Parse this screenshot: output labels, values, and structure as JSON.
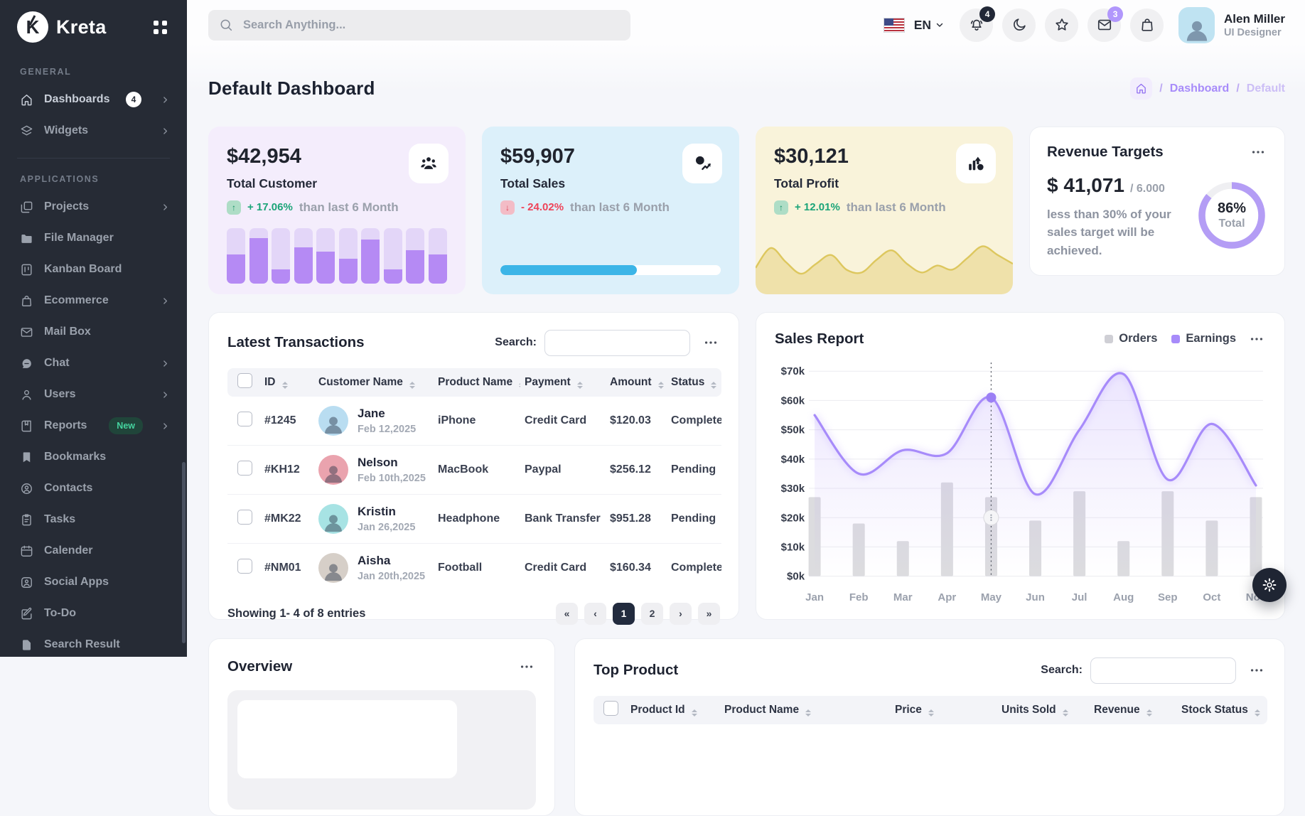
{
  "brand": {
    "name": "Kreta",
    "logo_letter": "K",
    "menu_icon": "grid-apps-icon"
  },
  "topbar": {
    "search": {
      "placeholder": "Search Anything...",
      "icon": "search-icon"
    },
    "language": {
      "label": "EN",
      "flag": "us-flag-icon",
      "caret": "chevron-down-icon"
    },
    "actions": [
      {
        "name": "notifications",
        "icon": "bell-icon",
        "badge": "4",
        "badge_color": "#222837"
      },
      {
        "name": "dark-mode",
        "icon": "moon-icon"
      },
      {
        "name": "favorites",
        "icon": "star-icon"
      },
      {
        "name": "messages",
        "icon": "mail-icon",
        "badge": "3",
        "badge_color": "#b197fc"
      },
      {
        "name": "cart",
        "icon": "shopping-bag-icon"
      }
    ],
    "user": {
      "name": "Alen Miller",
      "role": "UI Designer"
    }
  },
  "sidebar": {
    "sections": [
      {
        "title": "GENERAL",
        "items": [
          {
            "label": "Dashboards",
            "icon": "home-icon",
            "badge": "4",
            "chevron": true,
            "bright": true
          },
          {
            "label": "Widgets",
            "icon": "layers-icon",
            "chevron": true
          }
        ]
      },
      {
        "title": "APPLICATIONS",
        "items": [
          {
            "label": "Projects",
            "icon": "projects-icon",
            "chevron": true
          },
          {
            "label": "File Manager",
            "icon": "folder-icon"
          },
          {
            "label": "Kanban Board",
            "icon": "kanban-icon"
          },
          {
            "label": "Ecommerce",
            "icon": "shopping-bag-icon",
            "chevron": true
          },
          {
            "label": "Mail Box",
            "icon": "mail-icon"
          },
          {
            "label": "Chat",
            "icon": "chat-icon",
            "chevron": true
          },
          {
            "label": "Users",
            "icon": "user-icon",
            "chevron": true
          },
          {
            "label": "Reports",
            "icon": "report-icon",
            "new_badge": "New",
            "chevron": true
          },
          {
            "label": "Bookmarks",
            "icon": "bookmark-icon"
          },
          {
            "label": "Contacts",
            "icon": "contact-icon"
          },
          {
            "label": "Tasks",
            "icon": "tasks-icon"
          },
          {
            "label": "Calender",
            "icon": "calendar-icon"
          },
          {
            "label": "Social Apps",
            "icon": "social-icon"
          },
          {
            "label": "To-Do",
            "icon": "todo-icon"
          },
          {
            "label": "Search Result",
            "icon": "search-result-icon"
          }
        ]
      }
    ]
  },
  "page": {
    "title": "Default Dashboard",
    "breadcrumb": {
      "home_icon": "home-icon",
      "separator": "/",
      "path": [
        "Dashboard",
        "Default"
      ]
    }
  },
  "stats": [
    {
      "value": "$42,954",
      "label": "Total Customer",
      "delta": "+ 17.06%",
      "direction": "up",
      "compare": "than last 6 Month",
      "bg_color": "#f4edfc",
      "icon": "customers-icon"
    },
    {
      "value": "$59,907",
      "label": "Total Sales",
      "delta": "- 24.02%",
      "direction": "down",
      "compare": "than last 6 Month",
      "bg_color": "#dcf0fa",
      "icon": "sales-growth-icon"
    },
    {
      "value": "$30,121",
      "label": "Total Profit",
      "delta": "+ 12.01%",
      "direction": "up",
      "compare": "than last 6 Month",
      "bg_color": "#f9f3da",
      "icon": "profit-chart-icon"
    }
  ],
  "revenue": {
    "title": "Revenue Targets",
    "amount": "$ 41,071",
    "target": "/ 6.000",
    "description": "less than 30% of your sales target will be achieved.",
    "percent_text": "86%",
    "percent_label": "Total"
  },
  "transactions": {
    "title": "Latest Transactions",
    "search_label": "Search:",
    "columns": [
      "ID",
      "Customer Name",
      "Product Name",
      "Payment",
      "Amount",
      "Status"
    ],
    "rows": [
      {
        "id": "#1245",
        "customer": "Jane",
        "date": "Feb 12,2025",
        "product": "iPhone",
        "payment": "Credit Card",
        "amount": "$120.03",
        "status": "Complete",
        "avatar_bg": "#b9ddf1"
      },
      {
        "id": "#KH12",
        "customer": "Nelson",
        "date": "Feb 10th,2025",
        "product": "MacBook",
        "payment": "Paypal",
        "amount": "$256.12",
        "status": "Pending",
        "avatar_bg": "#eaa3ae"
      },
      {
        "id": "#MK22",
        "customer": "Kristin",
        "date": "Jan 26,2025",
        "product": "Headphone",
        "payment": "Bank Transfer",
        "amount": "$951.28",
        "status": "Pending",
        "avatar_bg": "#a7e3e4"
      },
      {
        "id": "#NM01",
        "customer": "Aisha",
        "date": "Jan 20th,2025",
        "product": "Football",
        "payment": "Credit Card",
        "amount": "$160.34",
        "status": "Complete",
        "avatar_bg": "#d6cfc8"
      }
    ],
    "footer": "Showing 1- 4 of 8 entries",
    "pagination": {
      "buttons": [
        "«",
        "‹",
        "1",
        "2",
        "›",
        "»"
      ],
      "active": "1"
    }
  },
  "sales_report": {
    "title": "Sales Report",
    "legend": [
      {
        "label": "Orders",
        "color": "#cfcfd5"
      },
      {
        "label": "Earnings",
        "color": "#a78bfa"
      }
    ]
  },
  "overview": {
    "title": "Overview"
  },
  "top_product": {
    "title": "Top Product",
    "search_label": "Search:",
    "columns": [
      "Product Id",
      "Product Name",
      "Price",
      "Units Sold",
      "Revenue",
      "Stock Status"
    ]
  },
  "colors": {
    "sidebar_bg": "#262b35",
    "accent_purple": "#a78bfa",
    "breadcrumb_purple": "#a78bfa",
    "progress_blue": "#3cb5e7",
    "mini_bar_fill": "#b58af4",
    "mini_bar_track": "#e3d6f8",
    "sparkline_yellow": "#ddc75e",
    "donut_ring": "#b49df5",
    "pagination_active_bg": "#222b3e",
    "delta_up_green": "#1ba478",
    "delta_down_red": "#ef4358"
  },
  "chart_data": [
    {
      "id": "sales-report",
      "type": "bar",
      "subtype": "bar+line-combo",
      "title": "Sales Report",
      "categories": [
        "Jan",
        "Feb",
        "Mar",
        "Apr",
        "May",
        "Jun",
        "Jul",
        "Aug",
        "Sep",
        "Oct",
        "Nov"
      ],
      "series": [
        {
          "name": "Orders",
          "type": "bar",
          "color": "#dcdcdf",
          "values": [
            27,
            18,
            12,
            32,
            27,
            19,
            29,
            12,
            29,
            19,
            27
          ]
        },
        {
          "name": "Earnings",
          "type": "line",
          "color": "#a78bfa",
          "values": [
            55,
            35,
            43,
            42,
            61,
            28,
            50,
            69,
            33,
            52,
            31
          ]
        }
      ],
      "unit": "$ thousands",
      "ylim": [
        0,
        70
      ],
      "ytick_labels": [
        "$0k",
        "$10k",
        "$20k",
        "$30k",
        "$40k",
        "$50k",
        "$60k",
        "$70k"
      ],
      "grid": "horizontal",
      "legend_position": "top-right",
      "highlight": {
        "category": "May",
        "series": "Earnings",
        "value": 61
      }
    },
    {
      "id": "total-customer-bars",
      "type": "bar",
      "values": [
        52,
        82,
        25,
        65,
        58,
        45,
        80,
        25,
        60,
        52
      ],
      "ylim": [
        0,
        100
      ]
    },
    {
      "id": "total-sales-progress",
      "type": "progress",
      "value": 62,
      "max": 100
    },
    {
      "id": "total-profit-sparkline",
      "type": "area",
      "values": [
        38,
        72,
        48,
        28,
        45,
        60,
        35,
        30,
        52,
        68,
        45,
        30,
        42,
        35,
        55,
        75,
        60,
        45
      ],
      "ylim": [
        0,
        100
      ]
    },
    {
      "id": "revenue-target-donut",
      "type": "donut",
      "value": 86,
      "label": "Total"
    }
  ]
}
